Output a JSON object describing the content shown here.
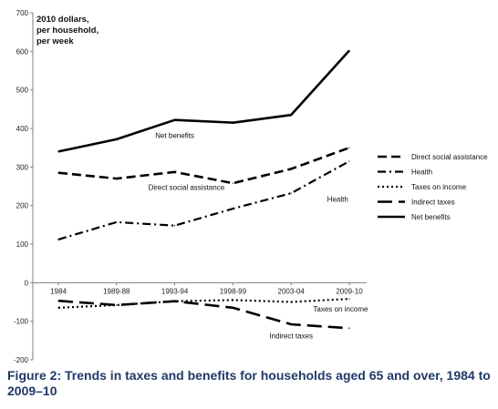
{
  "caption": "Figure 2: Trends in taxes and benefits for households aged 65 and over, 1984 to 2009–10",
  "chart_data": {
    "type": "line",
    "y_unit_label": [
      "2010 dollars,",
      "per household,",
      "per week"
    ],
    "categories": [
      "1984",
      "1989-88",
      "1993-94",
      "1998-99",
      "2003-04",
      "2009-10"
    ],
    "ylim": [
      -200,
      700
    ],
    "yticks": [
      -200,
      -100,
      0,
      100,
      200,
      300,
      400,
      500,
      600,
      700
    ],
    "grid": false,
    "legend_position": "right",
    "series": [
      {
        "name": "Direct social assistance",
        "dash": "10,5",
        "width": 2.6,
        "values": [
          285,
          270,
          287,
          258,
          295,
          350
        ]
      },
      {
        "name": "Health",
        "dash": "9,4,2,4",
        "width": 2.2,
        "values": [
          112,
          157,
          148,
          192,
          232,
          315
        ]
      },
      {
        "name": "Taxes on income",
        "dash": "2,3",
        "width": 2.2,
        "values": [
          -65,
          -58,
          -48,
          -45,
          -50,
          -42
        ]
      },
      {
        "name": "Indirect taxes",
        "dash": "16,7",
        "width": 2.6,
        "values": [
          -47,
          -58,
          -48,
          -65,
          -108,
          -118
        ]
      },
      {
        "name": "Net benefits",
        "dash": "none",
        "width": 2.6,
        "values": [
          340,
          372,
          422,
          415,
          435,
          602
        ]
      }
    ],
    "annotations": [
      {
        "text": "Net benefits",
        "at": [
          2.0,
          375
        ]
      },
      {
        "text": "Direct social assistance",
        "at": [
          2.2,
          240
        ]
      },
      {
        "text": "Health",
        "at": [
          4.8,
          210
        ]
      },
      {
        "text": "Taxes on income",
        "at": [
          4.85,
          -75
        ]
      },
      {
        "text": "Indirect taxes",
        "at": [
          4.0,
          -145
        ]
      }
    ]
  }
}
